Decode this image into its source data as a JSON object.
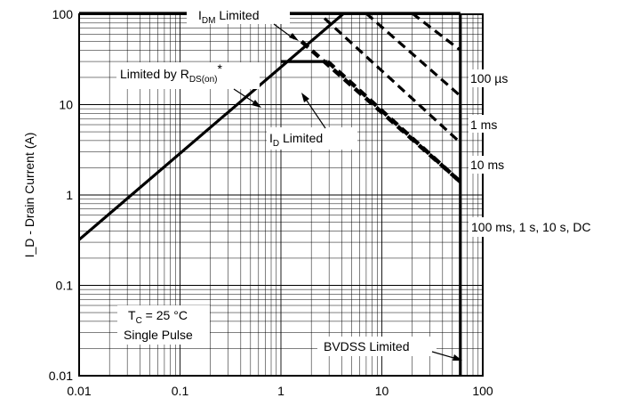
{
  "chart_data": {
    "type": "line",
    "title": "",
    "xlabel": "",
    "ylabel": "I_D - Drain Current (A)",
    "xscale": "log",
    "yscale": "log",
    "xlim": [
      0.01,
      100
    ],
    "ylim": [
      0.01,
      100
    ],
    "grid": true,
    "x_ticks": [
      "0.01",
      "0.1",
      "1",
      "10",
      "100"
    ],
    "y_ticks": [
      "0.01",
      "0.1",
      "1",
      "10",
      "100"
    ],
    "series": [
      {
        "name": "Limited by RDS(on)*",
        "style": "solid",
        "points": [
          [
            0.01,
            0.32
          ],
          [
            4.2,
            125
          ]
        ]
      },
      {
        "name": "IDM Limited",
        "style": "solid",
        "points": [
          [
            0.01,
            125
          ],
          [
            60,
            125
          ]
        ]
      },
      {
        "name": "ID Limited",
        "style": "solid",
        "points": [
          [
            1,
            30
          ],
          [
            2.9,
            30
          ]
        ]
      },
      {
        "name": "BVDSS Limited",
        "style": "solid",
        "points": [
          [
            60,
            125
          ],
          [
            60,
            0.01
          ]
        ]
      },
      {
        "name": "100 µs",
        "style": "dashed",
        "points": [
          [
            20,
            125
          ],
          [
            60,
            40
          ]
        ]
      },
      {
        "name": "1 ms",
        "style": "dashed",
        "points": [
          [
            7,
            125
          ],
          [
            60,
            12.5
          ]
        ]
      },
      {
        "name": "10 ms",
        "style": "dashed",
        "points": [
          [
            2.7,
            90
          ],
          [
            60,
            3.8
          ]
        ]
      },
      {
        "name": "100 ms, 1 s, 10 s, DC",
        "style": "dashed-thick",
        "points": [
          [
            1.6,
            50
          ],
          [
            60,
            1.4
          ]
        ]
      },
      {
        "name": "ID Limited dashed",
        "style": "dashed-thick",
        "points": [
          [
            2.9,
            30
          ],
          [
            60,
            1.4
          ]
        ]
      }
    ],
    "annotations": {
      "idm": {
        "main": "I",
        "sub": "DM",
        "rest": " Limited"
      },
      "rds": {
        "main": "Limited by R",
        "sub": "DS(on)",
        "rest": "*"
      },
      "id": {
        "main": "I",
        "sub": "D",
        "rest": " Limited"
      },
      "bvdss": "BVDSS Limited",
      "tc": {
        "main": "T",
        "sub": "C",
        "rest": " = 25 °C"
      },
      "pulse": "Single Pulse",
      "curve_labels": [
        "100 µs",
        "1 ms",
        "10 ms",
        "100 ms, 1 s, 10 s, DC"
      ]
    }
  }
}
